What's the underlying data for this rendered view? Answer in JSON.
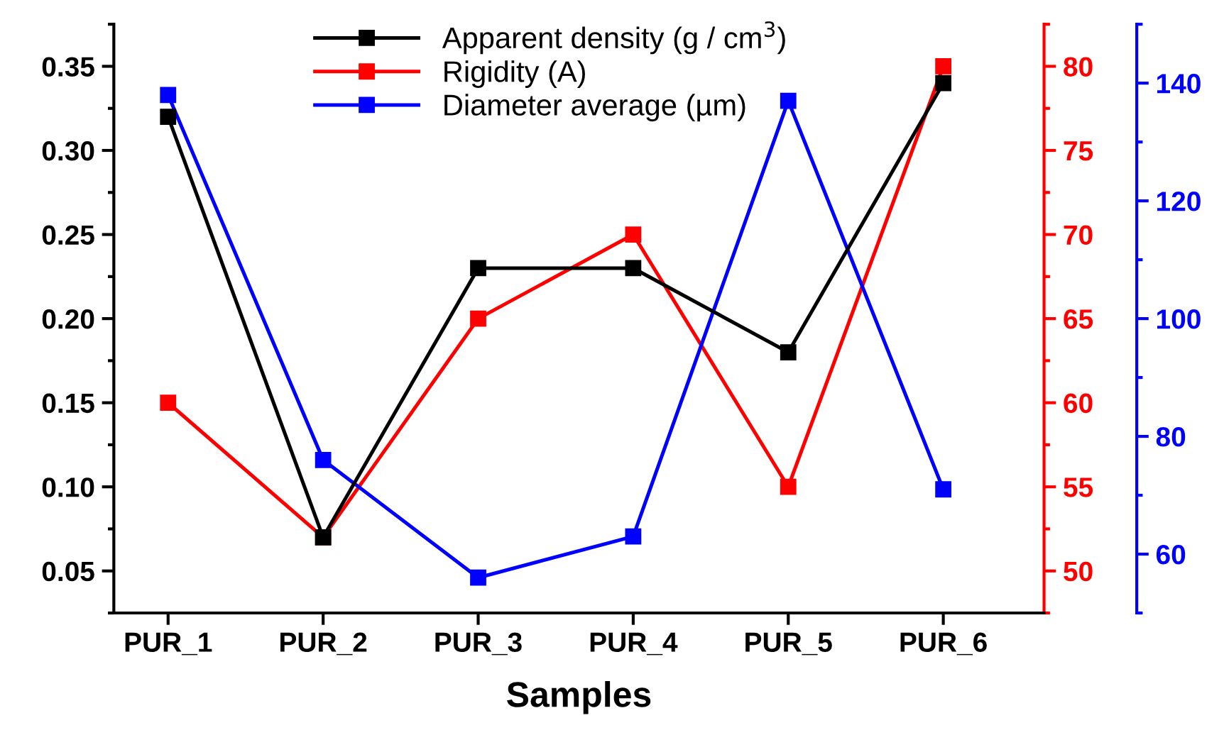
{
  "chart_data": {
    "type": "line",
    "xlabel": "Samples",
    "categories": [
      "PUR_1",
      "PUR_2",
      "PUR_3",
      "PUR_4",
      "PUR_5",
      "PUR_6"
    ],
    "series": [
      {
        "name": "Apparent density (g / cm$^{3}$)",
        "color": "#000000",
        "values": [
          0.32,
          0.07,
          0.23,
          0.23,
          0.18,
          0.34
        ]
      },
      {
        "name": "Rigidity (A)",
        "color": "#ff0000",
        "axis": "y2",
        "values": [
          60,
          52,
          65,
          70,
          55,
          80
        ]
      },
      {
        "name": "Diameter average (µm)",
        "color": "#0000ff",
        "axis": "y3",
        "values": [
          138,
          76,
          56,
          63,
          137,
          71
        ]
      }
    ],
    "ylim": [
      0.025,
      0.375
    ],
    "yticks": [
      0.05,
      {
        "value": 0.1,
        "label": "0.10"
      },
      0.15,
      {
        "value": 0.2,
        "label": "0.20"
      },
      0.25,
      {
        "value": 0.3,
        "label": "0.30"
      },
      0.35
    ],
    "y2lim": [
      47.5,
      82.5
    ],
    "y2ticks": [
      50,
      55,
      60,
      65,
      70,
      75,
      80
    ],
    "y3lim": [
      50,
      150
    ],
    "y3ticks": [
      60,
      80,
      100,
      120,
      140
    ],
    "marker": "square",
    "line_style": "solid",
    "grid": false,
    "legend": "top"
  }
}
